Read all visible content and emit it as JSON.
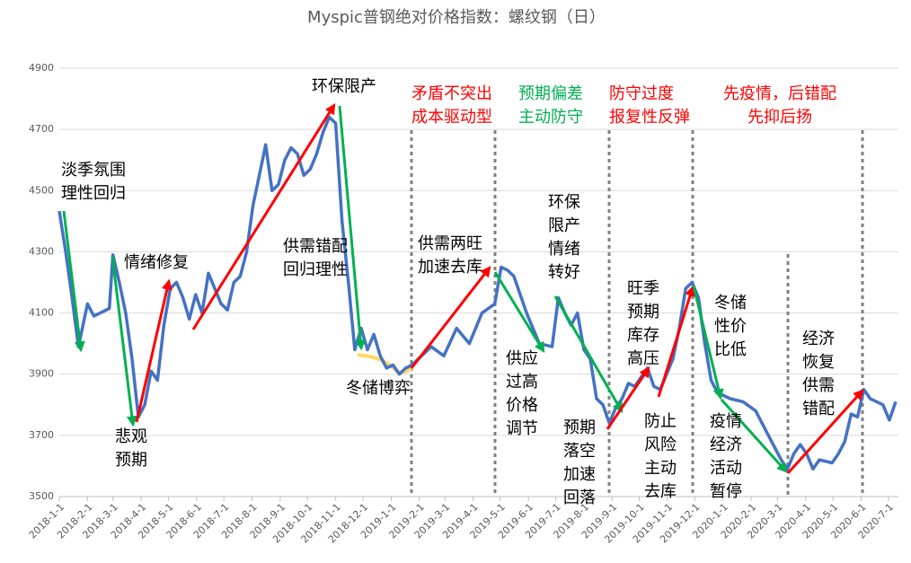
{
  "chart_data": {
    "type": "line",
    "title": "Myspic普钢绝对价格指数：螺纹钢（日）",
    "x": [
      "2018-1-1",
      "2018-1-8",
      "2018-1-15",
      "2018-1-22",
      "2018-2-1",
      "2018-2-8",
      "2018-2-15",
      "2018-2-25",
      "2018-3-1",
      "2018-3-8",
      "2018-3-15",
      "2018-3-22",
      "2018-3-29",
      "2018-4-5",
      "2018-4-12",
      "2018-4-19",
      "2018-4-26",
      "2018-5-3",
      "2018-5-10",
      "2018-5-17",
      "2018-5-24",
      "2018-5-31",
      "2018-6-7",
      "2018-6-14",
      "2018-6-21",
      "2018-6-28",
      "2018-7-5",
      "2018-7-12",
      "2018-7-19",
      "2018-7-26",
      "2018-8-2",
      "2018-8-9",
      "2018-8-16",
      "2018-8-23",
      "2018-8-30",
      "2018-9-6",
      "2018-9-13",
      "2018-9-20",
      "2018-9-27",
      "2018-10-4",
      "2018-10-11",
      "2018-10-18",
      "2018-10-25",
      "2018-11-1",
      "2018-11-8",
      "2018-11-15",
      "2018-11-22",
      "2018-11-29",
      "2018-12-6",
      "2018-12-13",
      "2018-12-20",
      "2018-12-27",
      "2019-1-3",
      "2019-1-10",
      "2019-1-17",
      "2019-1-24",
      "2019-1-31",
      "2019-2-14",
      "2019-2-28",
      "2019-3-14",
      "2019-3-28",
      "2019-4-11",
      "2019-4-25",
      "2019-5-2",
      "2019-5-9",
      "2019-5-16",
      "2019-5-30",
      "2019-6-13",
      "2019-6-27",
      "2019-7-4",
      "2019-7-11",
      "2019-7-18",
      "2019-7-25",
      "2019-8-1",
      "2019-8-8",
      "2019-8-15",
      "2019-8-22",
      "2019-8-29",
      "2019-9-5",
      "2019-9-12",
      "2019-9-19",
      "2019-9-26",
      "2019-10-10",
      "2019-10-17",
      "2019-10-24",
      "2019-10-31",
      "2019-11-7",
      "2019-11-14",
      "2019-11-21",
      "2019-11-28",
      "2019-12-5",
      "2019-12-12",
      "2019-12-19",
      "2019-12-26",
      "2020-1-9",
      "2020-1-23",
      "2020-2-6",
      "2020-2-20",
      "2020-3-5",
      "2020-3-12",
      "2020-3-19",
      "2020-3-26",
      "2020-4-2",
      "2020-4-9",
      "2020-4-16",
      "2020-4-30",
      "2020-5-7",
      "2020-5-14",
      "2020-5-21",
      "2020-5-28",
      "2020-6-4",
      "2020-6-11",
      "2020-6-25",
      "2020-7-2",
      "2020-7-9"
    ],
    "series": [
      {
        "color": "#4472c4",
        "values": [
          4433,
          4300,
          4150,
          3990,
          4130,
          4090,
          4100,
          4115,
          4290,
          4200,
          4100,
          3950,
          3760,
          3800,
          3910,
          3880,
          4060,
          4180,
          4200,
          4150,
          4080,
          4160,
          4100,
          4230,
          4180,
          4130,
          4110,
          4200,
          4220,
          4300,
          4450,
          4550,
          4650,
          4500,
          4520,
          4600,
          4640,
          4620,
          4550,
          4570,
          4620,
          4690,
          4740,
          4720,
          4400,
          4200,
          3980,
          4050,
          3980,
          4030,
          3960,
          3920,
          3930,
          3900,
          3920,
          3930,
          3950,
          3990,
          3960,
          4050,
          4000,
          4100,
          4130,
          4250,
          4240,
          4220,
          4100,
          4000,
          3990,
          4150,
          4100,
          4060,
          4100,
          3980,
          3950,
          3820,
          3800,
          3740,
          3790,
          3820,
          3870,
          3860,
          3920,
          3860,
          3850,
          3900,
          3950,
          4050,
          4180,
          4200,
          4150,
          4000,
          3880,
          3840,
          3820,
          3810,
          3780,
          3700,
          3620,
          3590,
          3640,
          3670,
          3640,
          3590,
          3620,
          3610,
          3640,
          3680,
          3770,
          3760,
          3850,
          3820,
          3800,
          3750,
          3810
        ]
      }
    ],
    "xlim": [
      "2018-1-1",
      "2020-7-12"
    ],
    "xticks": [
      "2018-1-1",
      "2018-2-1",
      "2018-3-1",
      "2018-4-1",
      "2018-5-1",
      "2018-6-1",
      "2018-7-1",
      "2018-8-1",
      "2018-9-1",
      "2018-10-1",
      "2018-11-1",
      "2018-12-1",
      "2019-1-1",
      "2019-2-1",
      "2019-3-1",
      "2019-4-1",
      "2019-5-1",
      "2019-6-1",
      "2019-7-1",
      "2019-8-1",
      "2019-9-1",
      "2019-10-1",
      "2019-11-1",
      "2019-12-1",
      "2020-1-1",
      "2020-2-1",
      "2020-3-1",
      "2020-4-1",
      "2020-5-1",
      "2020-6-1",
      "2020-7-1"
    ],
    "ylim": [
      3500,
      4900
    ],
    "yticks": [
      3500,
      3700,
      3900,
      4100,
      4300,
      4500,
      4700,
      4900
    ],
    "grid": true,
    "annotations": [
      {
        "lines": [
          "淡季氛围",
          "理性回归"
        ],
        "color": "#000000"
      },
      {
        "lines": [
          "悲观",
          "预期"
        ],
        "color": "#000000"
      },
      {
        "lines": [
          "情绪修复"
        ],
        "color": "#000000"
      },
      {
        "lines": [
          "环保限产"
        ],
        "color": "#000000"
      },
      {
        "lines": [
          "供需错配",
          "回归理性"
        ],
        "color": "#000000"
      },
      {
        "lines": [
          "冬储博弈"
        ],
        "color": "#000000"
      },
      {
        "lines": [
          "矛盾不突出",
          "成本驱动型"
        ],
        "color": "#ff0000"
      },
      {
        "lines": [
          "预期偏差",
          "主动防守"
        ],
        "color": "#00b050"
      },
      {
        "lines": [
          "防守过度",
          "报复性反弹"
        ],
        "color": "#ff0000"
      },
      {
        "lines": [
          "先疫情，后错配",
          "先抑后扬"
        ],
        "color": "#ff0000"
      },
      {
        "lines": [
          "供需两旺",
          "加速去库"
        ],
        "color": "#000000"
      },
      {
        "lines": [
          "环保",
          "限产",
          "情绪",
          "转好"
        ],
        "color": "#000000"
      },
      {
        "lines": [
          "供应",
          "过高",
          "价格",
          "调节"
        ],
        "color": "#000000"
      },
      {
        "lines": [
          "预期",
          "落空",
          "加速",
          "回落"
        ],
        "color": "#000000"
      },
      {
        "lines": [
          "旺季",
          "预期",
          "库存",
          "高压"
        ],
        "color": "#000000"
      },
      {
        "lines": [
          "防止",
          "风险",
          "主动",
          "去库"
        ],
        "color": "#000000"
      },
      {
        "lines": [
          "冬储",
          "性价",
          "比低"
        ],
        "color": "#000000"
      },
      {
        "lines": [
          "疫情",
          "经济",
          "活动",
          "暂停"
        ],
        "color": "#000000"
      },
      {
        "lines": [
          "经济",
          "恢复",
          "供需",
          "错配"
        ],
        "color": "#000000"
      }
    ]
  }
}
